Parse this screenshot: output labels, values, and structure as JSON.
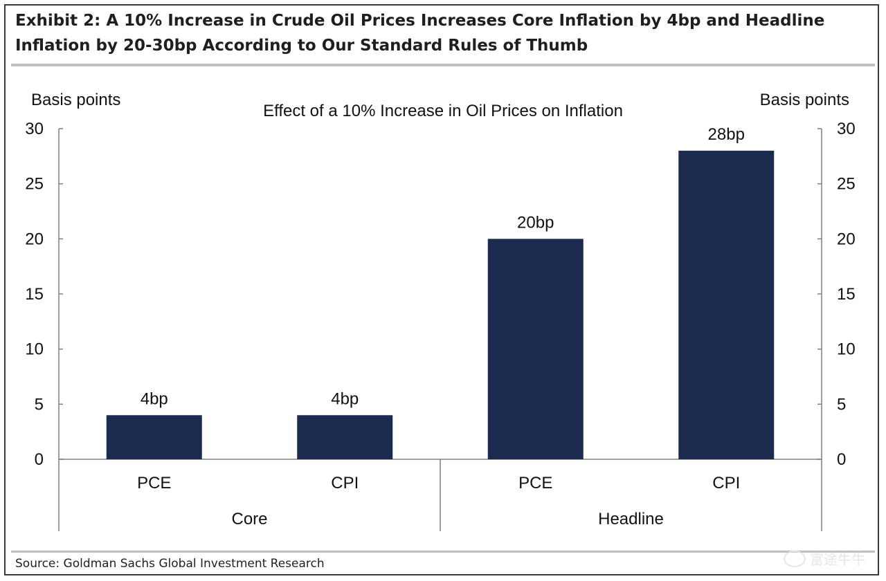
{
  "exhibit": {
    "title_line1": "Exhibit 2: A 10% Increase in Crude Oil Prices Increases Core Inflation by 4bp and Headline",
    "title_line2": "Inflation by 20-30bp According to Our Standard Rules of Thumb",
    "source": "Source: Goldman Sachs Global Investment Research",
    "watermark": "富途牛牛"
  },
  "colors": {
    "bar": "#1b2a4f",
    "axis": "#7f7f7f",
    "text": "#111111"
  },
  "chart_data": {
    "type": "bar",
    "title": "Effect of a 10% Increase in Oil Prices on Inflation",
    "ylabel_left": "Basis points",
    "ylabel_right": "Basis points",
    "ylim": [
      0,
      30
    ],
    "yticks": [
      0,
      5,
      10,
      15,
      20,
      25,
      30
    ],
    "categories": [
      "PCE",
      "CPI",
      "PCE",
      "CPI"
    ],
    "groups": [
      {
        "label": "Core",
        "start": 0,
        "count": 2
      },
      {
        "label": "Headline",
        "start": 2,
        "count": 2
      }
    ],
    "values": [
      4,
      4,
      20,
      28
    ],
    "data_labels": [
      "4bp",
      "4bp",
      "20bp",
      "28bp"
    ],
    "grid": false,
    "legend": "none"
  }
}
